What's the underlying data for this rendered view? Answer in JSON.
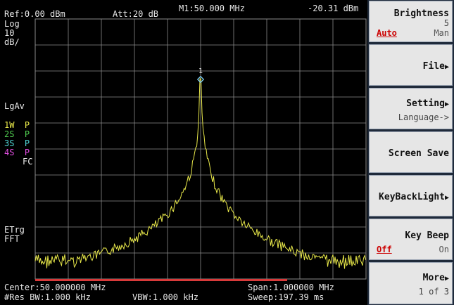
{
  "header": {
    "ref": "Ref:0.00 dBm",
    "att": "Att:20 dB",
    "marker": "M1:50.000 MHz",
    "marker_level": "-20.31 dBm"
  },
  "scale": {
    "log": "Log",
    "div": "10",
    "unit": "dB/"
  },
  "side_labels": {
    "lgav": "LgAv",
    "trace1": "1W  P",
    "trace2": "2S  P",
    "trace3": "3S  P",
    "trace4": "4S  P",
    "fc": "FC",
    "etrg": "ETrg",
    "fft": "FFT"
  },
  "footer": {
    "center": "Center:50.000000 MHz",
    "span": "Span:1.000000 MHz",
    "rbw": "#Res BW:1.000 kHz",
    "vbw": "VBW:1.000 kHz",
    "sweep": "Sweep:197.39 ms"
  },
  "marker_index": "1",
  "colors": {
    "trace": "#e8e84a",
    "trace2": "#4fc94f",
    "trace3": "#4fd2d2",
    "trace4": "#e04fe0",
    "grid": "#8a8a8a",
    "marker": "#7fd6ff",
    "bar": "#d83a3a"
  },
  "softkeys": [
    {
      "title": "Brightness",
      "value": "5",
      "left": "Auto",
      "right": "Man"
    },
    {
      "title": "File",
      "arrow": true
    },
    {
      "title": "Setting",
      "arrow": true,
      "sub": "Language->"
    },
    {
      "title": "Screen Save"
    },
    {
      "title": "KeyBackLight",
      "arrow": true
    },
    {
      "title": "Key Beep",
      "left": "Off",
      "right": "On"
    },
    {
      "title": "More",
      "arrow": true,
      "sub": "1 of 3"
    }
  ]
}
